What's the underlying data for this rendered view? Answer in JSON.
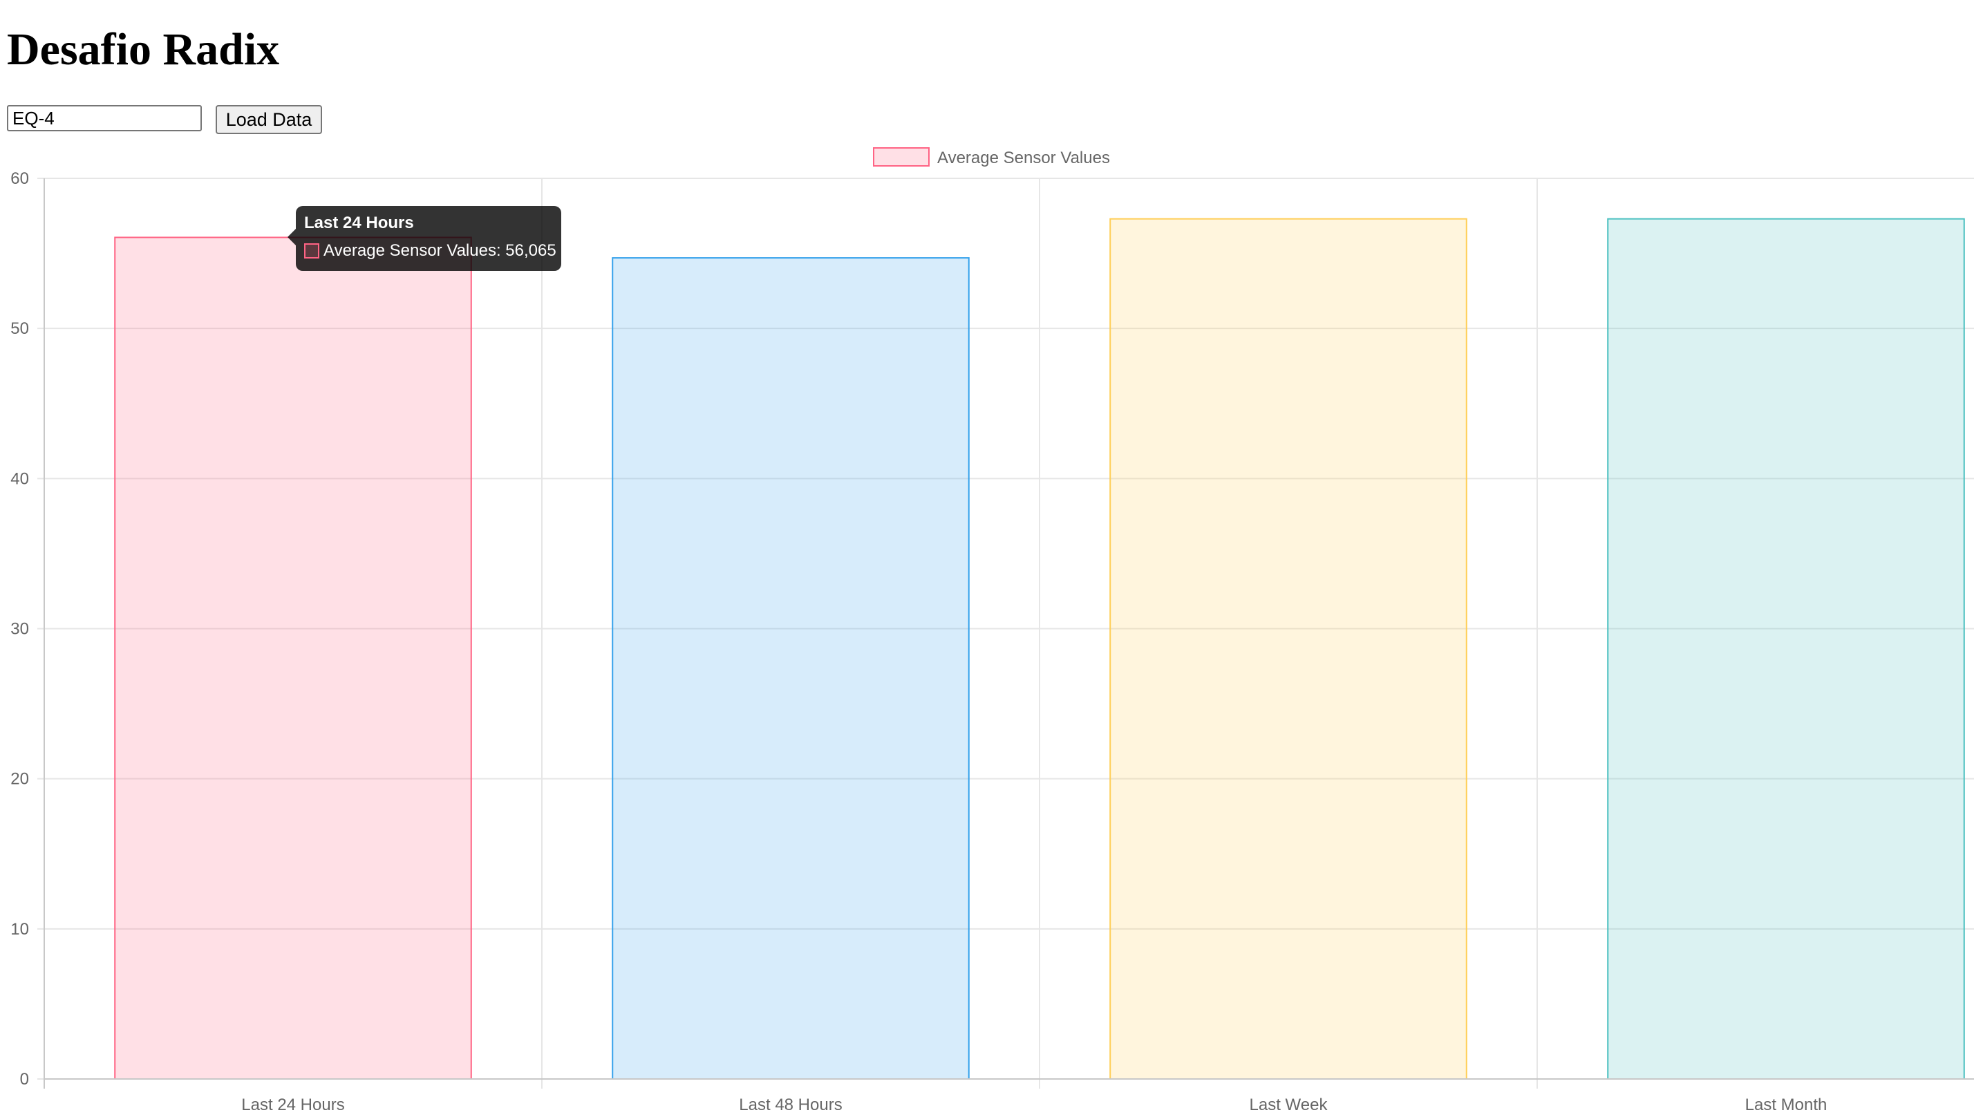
{
  "page": {
    "title": "Desafio Radix"
  },
  "controls": {
    "input_value": "EQ-4",
    "load_button_label": "Load Data"
  },
  "chart_data": {
    "type": "bar",
    "categories": [
      "Last 24 Hours",
      "Last 48 Hours",
      "Last Week",
      "Last Month"
    ],
    "series": [
      {
        "name": "Average Sensor Values",
        "values": [
          56.065,
          54.7,
          57.3,
          57.3
        ]
      }
    ],
    "ylim": [
      0,
      60
    ],
    "yticks": [
      0,
      10,
      20,
      30,
      40,
      50,
      60
    ],
    "grid": true,
    "legend_position": "top-center",
    "colors": {
      "fills": [
        "rgba(255,99,132,0.2)",
        "rgba(54,162,235,0.2)",
        "rgba(255,206,86,0.2)",
        "rgba(75,192,192,0.2)"
      ],
      "borders": [
        "#ff6384",
        "#36a2eb",
        "#ffce56",
        "#4bc0c0"
      ],
      "grid": "#e6e6e6",
      "axis": "#c8c8c8",
      "tick_text": "#666666"
    },
    "tooltip": {
      "title": "Last 24 Hours",
      "body": "Average Sensor Values: 56,065"
    }
  }
}
